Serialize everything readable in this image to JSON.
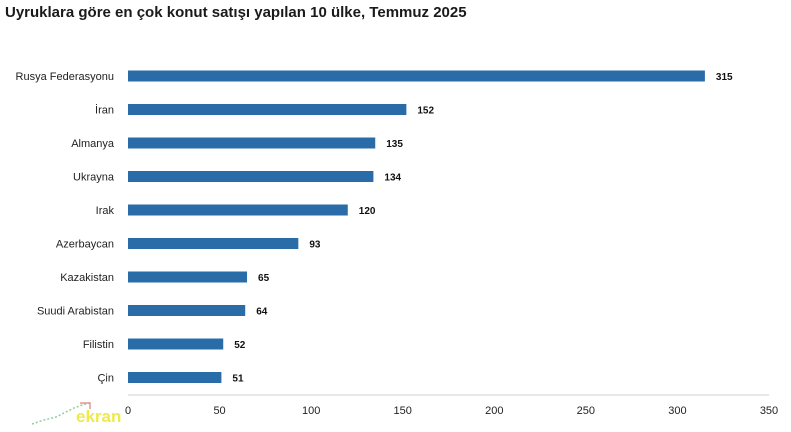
{
  "chart_data": {
    "type": "bar",
    "orientation": "horizontal",
    "title": "Uyruklara göre en çok konut satışı yapılan 10 ülke, Temmuz 2025",
    "categories": [
      "Rusya Federasyonu",
      "İran",
      "Almanya",
      "Ukrayna",
      "Irak",
      "Azerbaycan",
      "Kazakistan",
      "Suudi Arabistan",
      "Filistin",
      "Çin"
    ],
    "values": [
      315,
      152,
      135,
      134,
      120,
      93,
      65,
      64,
      52,
      51
    ],
    "xlim": [
      0,
      350
    ],
    "xticks": [
      0,
      50,
      100,
      150,
      200,
      250,
      300,
      350
    ],
    "data_labels": true,
    "grid": false,
    "bar_color": "#2a6ca8"
  },
  "watermark": {
    "text": "ekran",
    "color": "#e8e200"
  }
}
